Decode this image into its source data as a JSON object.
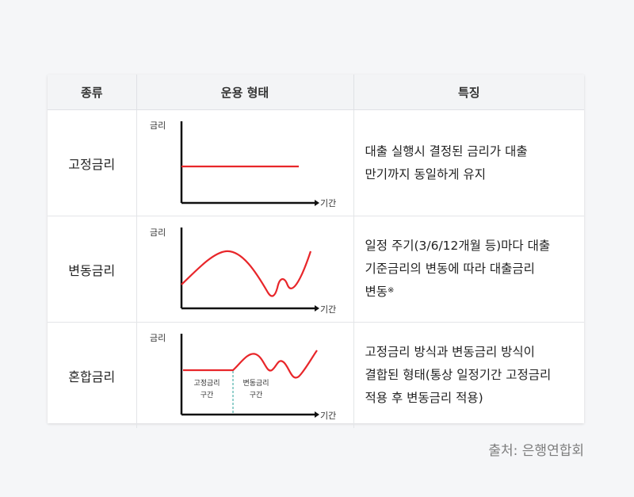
{
  "table": {
    "headers": [
      "종류",
      "운용 형태",
      "특징"
    ],
    "rows": [
      {
        "type": "고정금리",
        "chart": {
          "y_label": "금리",
          "x_label": "기간",
          "pattern": "flat"
        },
        "description_lines": [
          "대출 실행시 결정된 금리가 대출",
          "만기까지 동일하게 유지"
        ]
      },
      {
        "type": "변동금리",
        "chart": {
          "y_label": "금리",
          "x_label": "기간",
          "pattern": "fluctuating"
        },
        "description_lines": [
          "일정 주기(3/6/12개월 등)마다 대출",
          "기준금리의 변동에 따라 대출금리",
          "변동"
        ],
        "footnote_mark": "※"
      },
      {
        "type": "혼합금리",
        "chart": {
          "y_label": "금리",
          "x_label": "기간",
          "pattern": "fixed-then-fluctuating",
          "fixed_section_label": [
            "고정금리",
            "구간"
          ],
          "variable_section_label": [
            "변동금리",
            "구간"
          ]
        },
        "description_lines": [
          "고정금리 방식과 변동금리 방식이",
          "결합된 형태(통상 일정기간 고정금리",
          "적용 후 변동금리 적용)"
        ]
      }
    ]
  },
  "colors": {
    "line": "#e8262a",
    "axis": "#111111",
    "divider": "#2aa198"
  },
  "source": "출처: 은행연합회"
}
